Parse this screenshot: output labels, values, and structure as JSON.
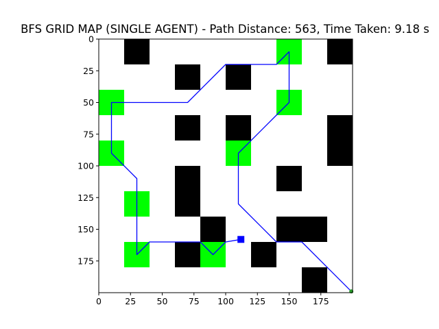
{
  "chart_data": {
    "type": "heatmap",
    "title": "BFS GRID MAP (SINGLE AGENT) - Path Distance: 563, Time Taken: 9.18 s",
    "xlabel": "",
    "ylabel": "",
    "xlim": [
      0,
      200
    ],
    "ylim": [
      200,
      0
    ],
    "x_ticks": [
      0,
      25,
      50,
      75,
      100,
      125,
      150,
      175
    ],
    "y_ticks": [
      0,
      25,
      50,
      75,
      100,
      125,
      150,
      175
    ],
    "grid_cell_size": 20,
    "colors": {
      "free": "#ffffff",
      "obstacle": "#000000",
      "visit_point": "#00ff00",
      "path": "#0000ff",
      "agent": "#0000ff",
      "goal": "#2ca02c"
    },
    "obstacles": [
      [
        20,
        0
      ],
      [
        180,
        0
      ],
      [
        60,
        20
      ],
      [
        100,
        20
      ],
      [
        60,
        60
      ],
      [
        100,
        60
      ],
      [
        180,
        60
      ],
      [
        180,
        80
      ],
      [
        60,
        100
      ],
      [
        140,
        100
      ],
      [
        60,
        120
      ],
      [
        80,
        140
      ],
      [
        140,
        140
      ],
      [
        160,
        140
      ],
      [
        60,
        160
      ],
      [
        120,
        160
      ],
      [
        160,
        180
      ]
    ],
    "visit_points": [
      [
        140,
        0
      ],
      [
        0,
        40
      ],
      [
        140,
        40
      ],
      [
        0,
        80
      ],
      [
        100,
        80
      ],
      [
        20,
        120
      ],
      [
        20,
        160
      ],
      [
        80,
        160
      ]
    ],
    "path": [
      [
        199,
        199
      ],
      [
        160,
        160
      ],
      [
        140,
        160
      ],
      [
        110,
        130
      ],
      [
        110,
        90
      ],
      [
        140,
        60
      ],
      [
        150,
        50
      ],
      [
        150,
        10
      ],
      [
        140,
        20
      ],
      [
        100,
        20
      ],
      [
        70,
        50
      ],
      [
        10,
        50
      ],
      [
        10,
        90
      ],
      [
        30,
        110
      ],
      [
        30,
        170
      ],
      [
        40,
        160
      ],
      [
        80,
        160
      ],
      [
        90,
        170
      ],
      [
        100,
        160
      ],
      [
        112,
        158
      ]
    ],
    "agent_position": [
      112,
      158
    ],
    "goal_position": [
      199,
      199
    ]
  }
}
